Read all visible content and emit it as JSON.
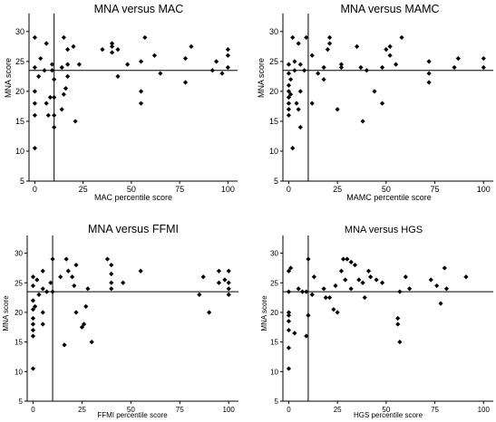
{
  "colors": {
    "ink": "#000000",
    "background": "#ffffff"
  },
  "chart_data": [
    {
      "type": "scatter",
      "title": "MNA versus MAC",
      "xlabel": "MAC percentile score",
      "ylabel": "MNA score",
      "xlim": [
        -3,
        105
      ],
      "ylim": [
        5,
        33
      ],
      "xticks": [
        0,
        25,
        50,
        75,
        100
      ],
      "yticks": [
        5,
        10,
        15,
        20,
        25,
        30
      ],
      "ref_x": 10,
      "ref_y": 23.5,
      "grid": false,
      "legend": "none",
      "marker": "diamond",
      "points": [
        [
          0,
          10.5
        ],
        [
          0,
          16
        ],
        [
          0,
          18
        ],
        [
          0,
          20
        ],
        [
          0,
          24
        ],
        [
          0,
          29
        ],
        [
          2,
          22.5
        ],
        [
          3,
          25.5
        ],
        [
          5,
          23.5
        ],
        [
          6,
          18
        ],
        [
          6,
          28
        ],
        [
          7,
          16
        ],
        [
          8,
          19
        ],
        [
          9,
          23.5
        ],
        [
          9,
          24.5
        ],
        [
          10,
          14
        ],
        [
          10,
          16
        ],
        [
          10,
          19
        ],
        [
          10,
          22
        ],
        [
          14,
          17
        ],
        [
          14,
          24
        ],
        [
          15,
          29
        ],
        [
          15,
          19.5
        ],
        [
          16,
          20.5
        ],
        [
          17,
          22.5
        ],
        [
          17,
          24.5
        ],
        [
          17,
          27
        ],
        [
          20,
          27.5
        ],
        [
          21,
          15
        ],
        [
          23,
          24.5
        ],
        [
          35,
          27
        ],
        [
          40,
          26.5
        ],
        [
          40,
          27.5
        ],
        [
          40,
          28
        ],
        [
          43,
          27
        ],
        [
          43,
          22.5
        ],
        [
          48,
          24.5
        ],
        [
          55,
          18
        ],
        [
          55,
          20
        ],
        [
          55,
          25
        ],
        [
          57,
          29
        ],
        [
          62,
          26
        ],
        [
          65,
          23
        ],
        [
          78,
          25.5
        ],
        [
          78,
          21.5
        ],
        [
          81,
          27.5
        ],
        [
          92,
          23.5
        ],
        [
          94,
          25
        ],
        [
          97,
          23
        ],
        [
          100,
          24
        ],
        [
          100,
          26
        ],
        [
          100,
          27
        ]
      ]
    },
    {
      "type": "scatter",
      "title": "MNA versus MAMC",
      "xlabel": "MAMC percentile score",
      "ylabel": "MNA score",
      "xlim": [
        -3,
        105
      ],
      "ylim": [
        5,
        33
      ],
      "xticks": [
        0,
        25,
        50,
        75,
        100
      ],
      "yticks": [
        5,
        10,
        15,
        20,
        25,
        30
      ],
      "ref_x": 10,
      "ref_y": 23.5,
      "grid": false,
      "legend": "none",
      "marker": "diamond",
      "points": [
        [
          0,
          16
        ],
        [
          0,
          17
        ],
        [
          0,
          18
        ],
        [
          0,
          19
        ],
        [
          0,
          20
        ],
        [
          0,
          21
        ],
        [
          0,
          23
        ],
        [
          0,
          24.5
        ],
        [
          1,
          19.5
        ],
        [
          1,
          22
        ],
        [
          2,
          29
        ],
        [
          2,
          10.5
        ],
        [
          3,
          23.5
        ],
        [
          3,
          25
        ],
        [
          4,
          18
        ],
        [
          5,
          17
        ],
        [
          5,
          28
        ],
        [
          6,
          20
        ],
        [
          6,
          24.5
        ],
        [
          6,
          14
        ],
        [
          8,
          23.5
        ],
        [
          9,
          29
        ],
        [
          12,
          18
        ],
        [
          12,
          26
        ],
        [
          15,
          23
        ],
        [
          18,
          22
        ],
        [
          18,
          24
        ],
        [
          20,
          27
        ],
        [
          21,
          28
        ],
        [
          21,
          29
        ],
        [
          25,
          17
        ],
        [
          27,
          24
        ],
        [
          27,
          24.5
        ],
        [
          35,
          27.5
        ],
        [
          37,
          24
        ],
        [
          38,
          15
        ],
        [
          40,
          23.5
        ],
        [
          44,
          20
        ],
        [
          48,
          24
        ],
        [
          48,
          18
        ],
        [
          50,
          27
        ],
        [
          52,
          26
        ],
        [
          52,
          27.5
        ],
        [
          55,
          24.5
        ],
        [
          58,
          29
        ],
        [
          72,
          25
        ],
        [
          72,
          23
        ],
        [
          72,
          21.5
        ],
        [
          85,
          24
        ],
        [
          87,
          25.5
        ],
        [
          100,
          24
        ],
        [
          100,
          25.5
        ]
      ]
    },
    {
      "type": "scatter",
      "title": "MNA versus FFMI",
      "xlabel": "FFMI percentile score",
      "ylabel": "MNA score",
      "xlim": [
        -3,
        105
      ],
      "ylim": [
        5,
        33
      ],
      "xticks": [
        0,
        25,
        50,
        75,
        100
      ],
      "yticks": [
        5,
        10,
        15,
        20,
        25,
        30
      ],
      "ref_x": 10,
      "ref_y": 23.5,
      "grid": false,
      "legend": "none",
      "marker": "diamond",
      "points": [
        [
          0,
          10.5
        ],
        [
          0,
          16
        ],
        [
          0,
          17
        ],
        [
          0,
          18
        ],
        [
          0,
          19
        ],
        [
          0,
          20.5
        ],
        [
          0,
          22
        ],
        [
          0,
          24.5
        ],
        [
          0,
          26
        ],
        [
          1,
          21
        ],
        [
          2,
          25.5
        ],
        [
          3,
          23
        ],
        [
          5,
          20
        ],
        [
          5,
          18
        ],
        [
          5,
          24
        ],
        [
          5,
          27
        ],
        [
          7,
          23.5
        ],
        [
          9,
          25
        ],
        [
          10,
          29
        ],
        [
          10,
          23.5
        ],
        [
          14,
          26
        ],
        [
          16,
          14.5
        ],
        [
          17,
          29
        ],
        [
          18,
          27
        ],
        [
          20,
          26
        ],
        [
          21,
          24.5
        ],
        [
          22,
          20
        ],
        [
          22,
          28
        ],
        [
          25,
          17.5
        ],
        [
          26,
          18
        ],
        [
          27,
          21
        ],
        [
          28,
          24
        ],
        [
          30,
          15
        ],
        [
          38,
          29
        ],
        [
          40,
          24
        ],
        [
          40,
          25
        ],
        [
          40,
          26.5
        ],
        [
          40,
          28
        ],
        [
          46,
          25
        ],
        [
          55,
          27
        ],
        [
          85,
          23
        ],
        [
          87,
          26
        ],
        [
          90,
          20
        ],
        [
          95,
          25
        ],
        [
          95,
          27
        ],
        [
          98,
          25.5
        ],
        [
          100,
          24
        ],
        [
          100,
          25
        ],
        [
          100,
          27
        ],
        [
          100,
          23
        ]
      ]
    },
    {
      "type": "scatter",
      "title": "MNA versus HGS",
      "xlabel": "HGS percentile score",
      "ylabel": "MNA score",
      "xlim": [
        -3,
        105
      ],
      "ylim": [
        5,
        33
      ],
      "xticks": [
        0,
        25,
        50,
        75,
        100
      ],
      "yticks": [
        5,
        10,
        15,
        20,
        25,
        30
      ],
      "ref_x": 10,
      "ref_y": 23.5,
      "grid": false,
      "legend": "none",
      "marker": "diamond",
      "points": [
        [
          0,
          10.5
        ],
        [
          0,
          14
        ],
        [
          0,
          17
        ],
        [
          0,
          18.5
        ],
        [
          0,
          19.5
        ],
        [
          0,
          20
        ],
        [
          0,
          23.5
        ],
        [
          0,
          27
        ],
        [
          1,
          27.5
        ],
        [
          3,
          16.5
        ],
        [
          5,
          24
        ],
        [
          7,
          23.5
        ],
        [
          9,
          16
        ],
        [
          9,
          23.5
        ],
        [
          10,
          29
        ],
        [
          10,
          19.5
        ],
        [
          12,
          23
        ],
        [
          13,
          26
        ],
        [
          18,
          24
        ],
        [
          19,
          22.5
        ],
        [
          21,
          22.5
        ],
        [
          23,
          20.5
        ],
        [
          24,
          24.5
        ],
        [
          25,
          20
        ],
        [
          27,
          27
        ],
        [
          28,
          29
        ],
        [
          29,
          25.5
        ],
        [
          30,
          29
        ],
        [
          32,
          28.5
        ],
        [
          32,
          24
        ],
        [
          34,
          28
        ],
        [
          36,
          25.5
        ],
        [
          38,
          25
        ],
        [
          39,
          22.5
        ],
        [
          41,
          27
        ],
        [
          42,
          26
        ],
        [
          45,
          25.5
        ],
        [
          48,
          25
        ],
        [
          56,
          19
        ],
        [
          56,
          18
        ],
        [
          57,
          23.5
        ],
        [
          57,
          15
        ],
        [
          60,
          26
        ],
        [
          62,
          24
        ],
        [
          73,
          25.5
        ],
        [
          76,
          24.5
        ],
        [
          78,
          21.5
        ],
        [
          80,
          27.5
        ],
        [
          81,
          24
        ],
        [
          91,
          26
        ]
      ]
    }
  ]
}
